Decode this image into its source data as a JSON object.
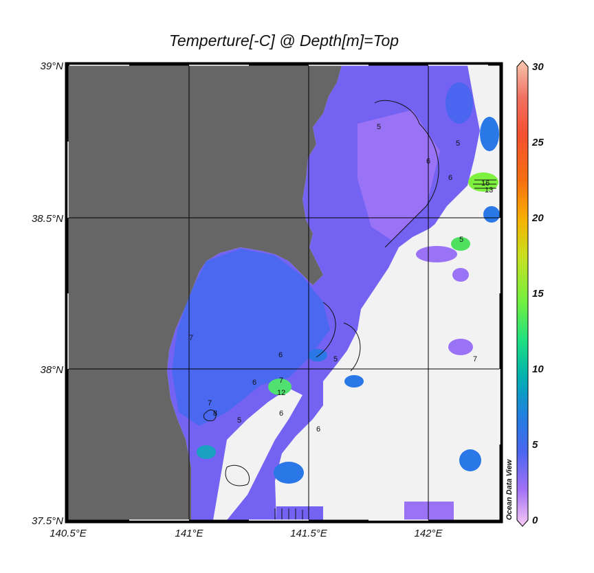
{
  "title": "Temperture[-C] @ Depth[m]=Top",
  "map": {
    "lon_range": [
      140.5,
      142.3
    ],
    "lat_range": [
      37.5,
      39.0
    ],
    "x_tick_labels": [
      "140.5°E",
      "141°E",
      "141.5°E",
      "142°E"
    ],
    "y_tick_labels": [
      "39°N",
      "38.5°N",
      "38°N",
      "37.5°N"
    ],
    "land_color": "#666666",
    "no_data_color": "#f2f2f2",
    "contour_labels": [
      "5",
      "6",
      "6",
      "7",
      "7",
      "8",
      "6",
      "5",
      "5",
      "6",
      "7",
      "5",
      "6",
      "12",
      "7",
      "16",
      "13",
      "5",
      "6"
    ]
  },
  "colorbar": {
    "min": 0,
    "max": 30,
    "tick_labels": [
      "30",
      "25",
      "20",
      "15",
      "10",
      "5",
      "0"
    ],
    "colors": [
      "#f8c8b0",
      "#f05a40",
      "#f56a10",
      "#f7b000",
      "#c8e020",
      "#70f040",
      "#20e080",
      "#00b0b0",
      "#2080e0",
      "#4a66f0",
      "#9a70f5",
      "#f0b8f0"
    ]
  },
  "watermark": "Ocean Data View"
}
